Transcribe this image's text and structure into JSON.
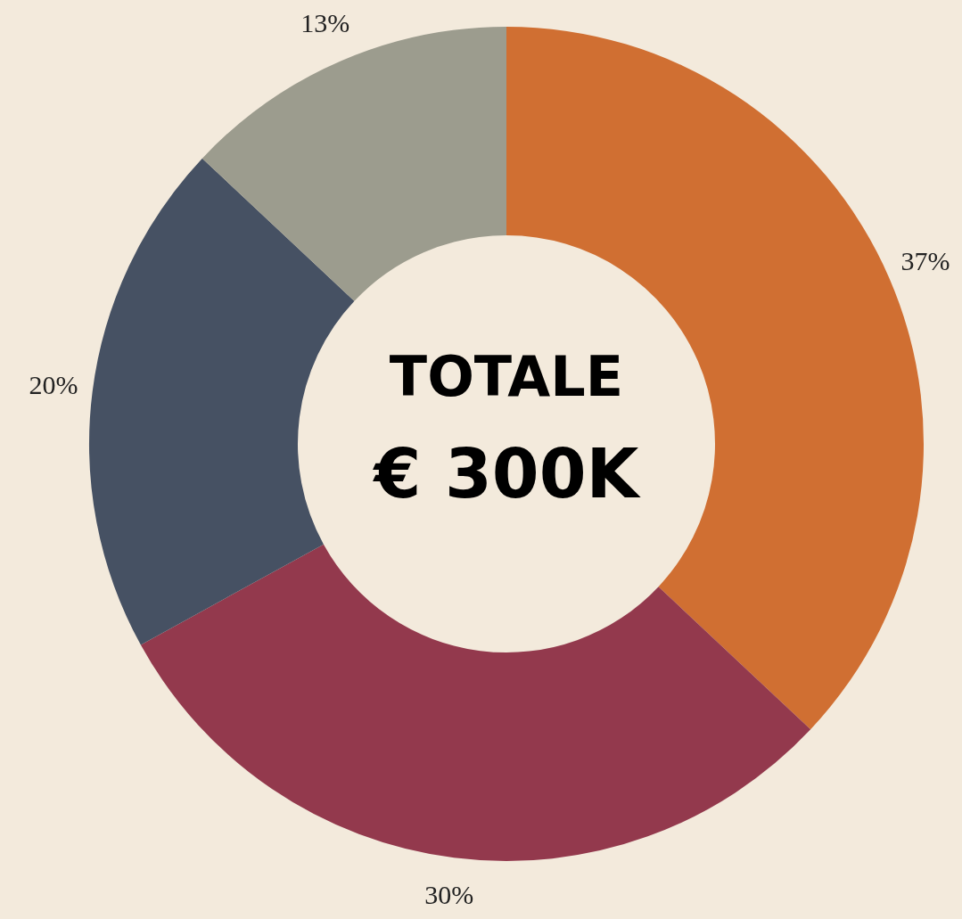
{
  "chart_data": {
    "type": "donut",
    "categories": [
      null,
      null,
      null,
      null
    ],
    "values": [
      37,
      30,
      20,
      13
    ],
    "colors": [
      "#d06f32",
      "#93394d",
      "#465163",
      "#9c9c8e"
    ],
    "value_labels": [
      "37%",
      "30%",
      "20%",
      "13%"
    ],
    "annotations": [
      "TOTALE",
      "€ 300K"
    ]
  }
}
